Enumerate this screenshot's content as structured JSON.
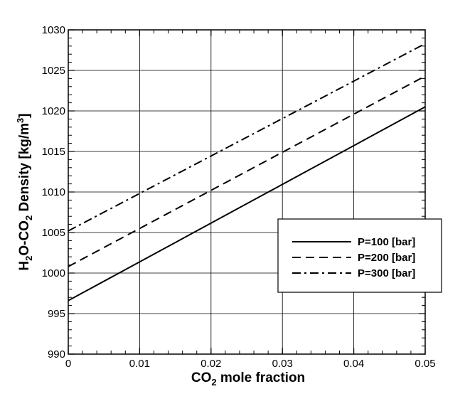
{
  "chart_data": {
    "type": "line",
    "xlabel": {
      "main": "CO",
      "sub": "2",
      "rest": " mole fraction"
    },
    "ylabel": {
      "parts": [
        {
          "t": "H",
          "sub": false
        },
        {
          "t": "2",
          "sub": true
        },
        {
          "t": "O-CO",
          "sub": false
        },
        {
          "t": "2",
          "sub": true
        },
        {
          "t": " Density [kg/m",
          "sub": false
        },
        {
          "t": "3",
          "sub": "sup"
        },
        {
          "t": "]",
          "sub": false
        }
      ]
    },
    "xlim": [
      0,
      0.05
    ],
    "ylim": [
      990,
      1030
    ],
    "xticks": [
      0,
      0.01,
      0.02,
      0.03,
      0.04,
      0.05
    ],
    "xtick_labels": [
      "0",
      "0.01",
      "0.02",
      "0.03",
      "0.04",
      "0.05"
    ],
    "yticks": [
      990,
      995,
      1000,
      1005,
      1010,
      1015,
      1020,
      1025,
      1030
    ],
    "ytick_labels": [
      "990",
      "995",
      "1000",
      "1005",
      "1010",
      "1015",
      "1020",
      "1025",
      "1030"
    ],
    "grid": true,
    "legend_position": "center-right",
    "series": [
      {
        "name": "P=100 [bar]",
        "style": "solid",
        "x": [
          0,
          0.05
        ],
        "y": [
          996.6,
          1020.5
        ]
      },
      {
        "name": "P=200 [bar]",
        "style": "dashed",
        "x": [
          0,
          0.05
        ],
        "y": [
          1000.8,
          1024.3
        ]
      },
      {
        "name": "P=300 [bar]",
        "style": "dashdot",
        "x": [
          0,
          0.05
        ],
        "y": [
          1005.2,
          1028.3
        ]
      }
    ],
    "colors": {
      "line": "#000000",
      "grid": "#000000",
      "background": "#ffffff"
    }
  }
}
